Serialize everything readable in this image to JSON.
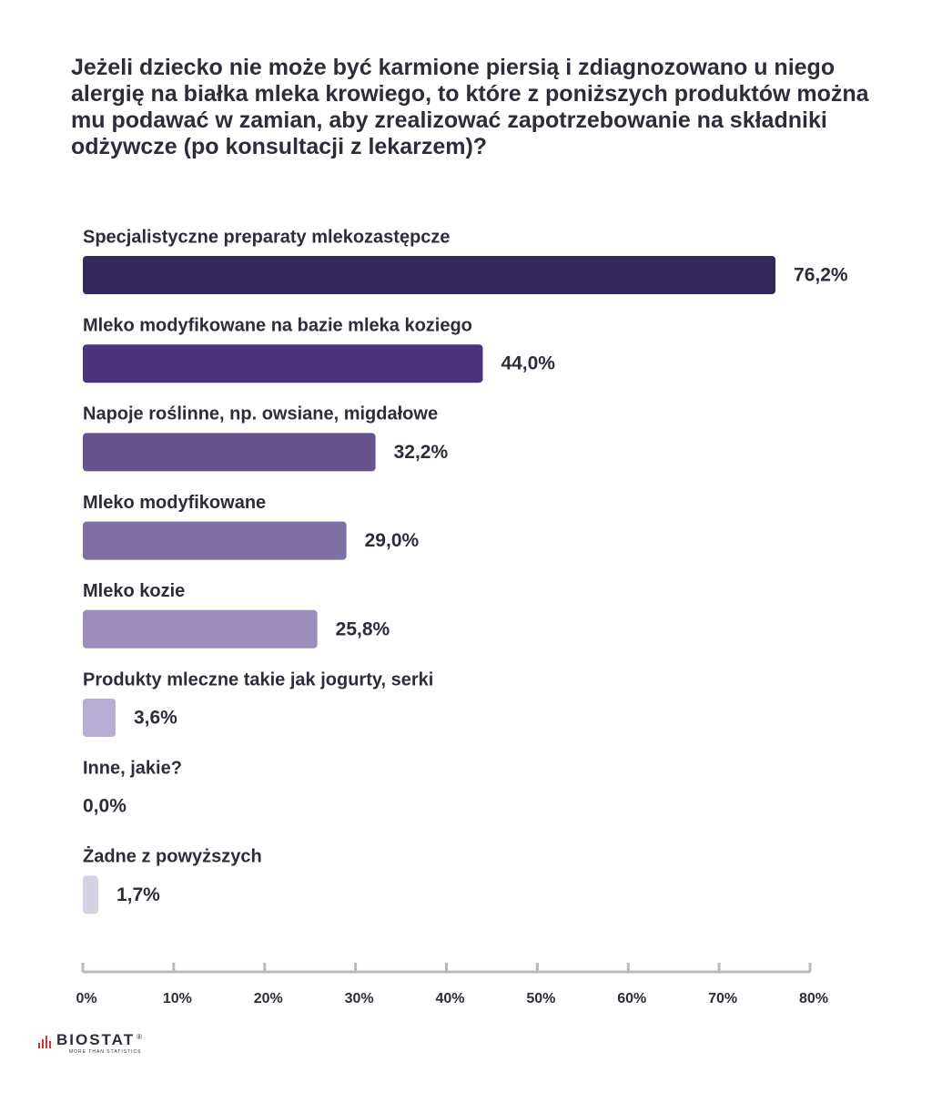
{
  "chart_data": {
    "type": "bar",
    "orientation": "horizontal",
    "title": "Jeżeli dziecko nie może być karmione piersią i zdiagnozowano u niego alergię na białka mleka krowiego, to które z poniższych produktów można mu podawać w zamian, aby zrealizować zapotrzebowanie na składniki odżywcze (po konsultacji z lekarzem)?",
    "categories": [
      "Specjalistyczne preparaty mlekozastępcze",
      "Mleko modyfikowane na bazie mleka koziego",
      "Napoje roślinne, np. owsiane, migdałowe",
      "Mleko modyfikowane",
      "Mleko kozie",
      "Produkty mleczne takie jak jogurty, serki",
      "Inne, jakie?",
      "Żadne z powyższych"
    ],
    "values": [
      76.2,
      44.0,
      32.2,
      29.0,
      25.8,
      3.6,
      0.0,
      1.7
    ],
    "value_labels": [
      "76,2%",
      "44,0%",
      "32,2%",
      "29,0%",
      "25,8%",
      "3,6%",
      "0,0%",
      "1,7%"
    ],
    "bar_colors": [
      "#34275a",
      "#4b3479",
      "#65538e",
      "#7f70a4",
      "#9b8ebc",
      "#b7acd4",
      "#c9c2de",
      "#d6d2e6"
    ],
    "xlim": [
      0,
      80
    ],
    "xticks": [
      0,
      10,
      20,
      30,
      40,
      50,
      60,
      70,
      80
    ],
    "xtick_labels": [
      "0%",
      "10%",
      "20%",
      "30%",
      "40%",
      "50%",
      "60%",
      "70%",
      "80%"
    ],
    "grid": false,
    "legend": "none"
  },
  "logo": {
    "name": "BIOSTAT",
    "registered": "®",
    "tagline": "MORE THAN STATISTICS",
    "accent_color": "#d9342b"
  }
}
